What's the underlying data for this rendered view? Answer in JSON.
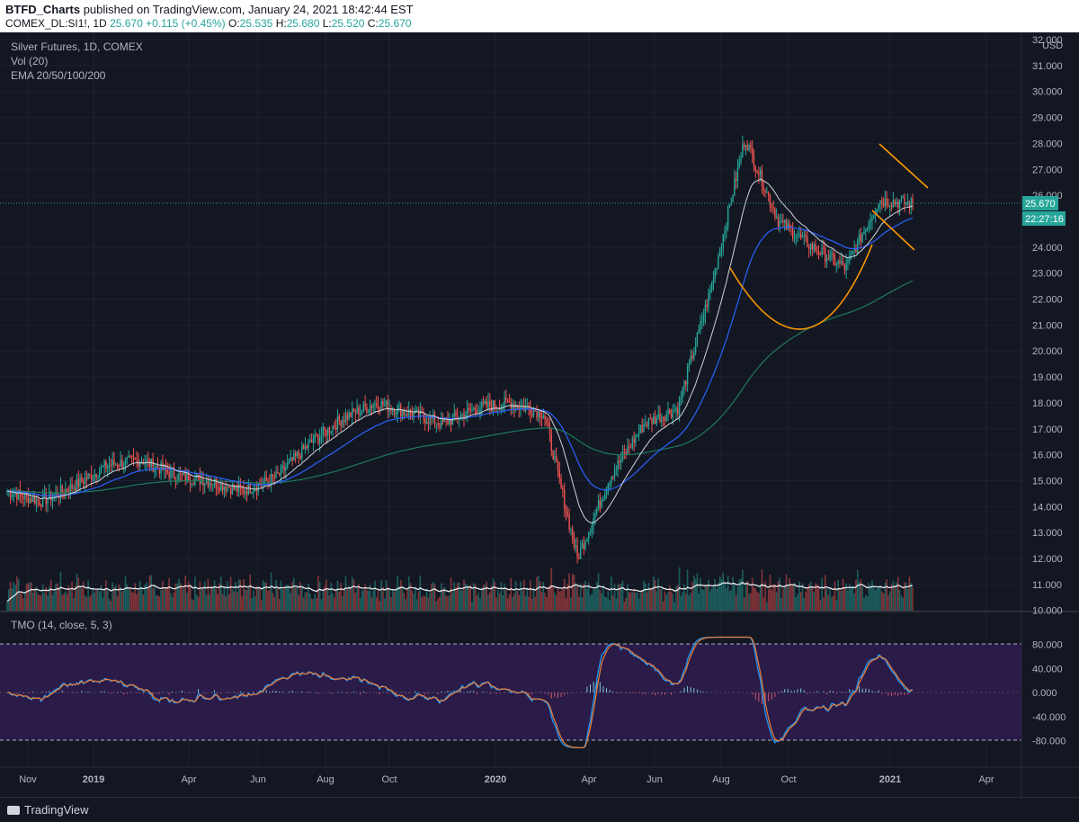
{
  "header": {
    "author": "BTFD_Charts",
    "published_text": " published on TradingView.com, January 24, 2021 18:42:44 EST",
    "symbol": "COMEX_DL:SI1!, 1D",
    "last": "25.670",
    "change": "+0.115 (+0.45%)",
    "o_label": "O:",
    "o": "25.535",
    "h_label": "H:",
    "h": "25.680",
    "l_label": "L:",
    "l": "25.520",
    "c_label": "C:",
    "c": "25.670"
  },
  "legend": {
    "title": "Silver Futures, 1D, COMEX",
    "vol": "Vol (20)",
    "ema": "EMA 20/50/100/200",
    "tmo": "TMO (14, close, 5, 3)"
  },
  "price_axis": {
    "currency": "USD",
    "ticks": [
      "32.000",
      "31.000",
      "30.000",
      "29.000",
      "28.000",
      "27.000",
      "26.000",
      "24.000",
      "23.000",
      "22.000",
      "21.000",
      "20.000",
      "19.000",
      "18.000",
      "17.000",
      "16.000",
      "15.000",
      "14.000",
      "13.000",
      "12.000",
      "11.000",
      "10.000"
    ],
    "last_price": "25.670",
    "countdown": "22:27:16"
  },
  "tmo_axis": {
    "ticks": [
      "80.000",
      "40.000",
      "0.000",
      "-40.000",
      "-80.000"
    ]
  },
  "time_axis": {
    "labels": [
      "Nov",
      "2019",
      "Apr",
      "Jun",
      "Aug",
      "Oct",
      "2020",
      "Apr",
      "Jun",
      "Aug",
      "Oct",
      "2021",
      "Apr"
    ]
  },
  "footer": {
    "brand": "TradingView"
  },
  "colors": {
    "background": "#131722",
    "up": "#26a69a",
    "down": "#ef5350",
    "ema20": "#ffffff",
    "ema50": "#2962ff",
    "ema200": "#1e7a5c",
    "pattern": "#ff9800"
  },
  "chart_data": {
    "type": "candlestick",
    "title": "Silver Futures, 1D, COMEX",
    "ylim": [
      10,
      32
    ],
    "series_notes": [
      "Vol (20)",
      "EMA 20/50/100/200",
      "TMO (14, close, 5, 3)"
    ],
    "time_range": [
      "2018-10",
      "2021-01"
    ],
    "approx_close_path": [
      {
        "x": "2018-10",
        "y": 14.6
      },
      {
        "x": "2018-11",
        "y": 14.2
      },
      {
        "x": "2018-12",
        "y": 14.8
      },
      {
        "x": "2019-01",
        "y": 15.6
      },
      {
        "x": "2019-02",
        "y": 15.8
      },
      {
        "x": "2019-03",
        "y": 15.2
      },
      {
        "x": "2019-04",
        "y": 15.0
      },
      {
        "x": "2019-05",
        "y": 14.6
      },
      {
        "x": "2019-06",
        "y": 15.1
      },
      {
        "x": "2019-07",
        "y": 16.4
      },
      {
        "x": "2019-08",
        "y": 17.4
      },
      {
        "x": "2019-09",
        "y": 18.0
      },
      {
        "x": "2019-10",
        "y": 17.6
      },
      {
        "x": "2019-11",
        "y": 17.2
      },
      {
        "x": "2019-12",
        "y": 17.8
      },
      {
        "x": "2020-01",
        "y": 18.0
      },
      {
        "x": "2020-02",
        "y": 17.6
      },
      {
        "x": "2020-03",
        "y": 12.0
      },
      {
        "x": "2020-04",
        "y": 15.2
      },
      {
        "x": "2020-05",
        "y": 17.2
      },
      {
        "x": "2020-06",
        "y": 17.8
      },
      {
        "x": "2020-07",
        "y": 22.5
      },
      {
        "x": "2020-08",
        "y": 28.2
      },
      {
        "x": "2020-09",
        "y": 25.0
      },
      {
        "x": "2020-10",
        "y": 24.0
      },
      {
        "x": "2020-11",
        "y": 23.2
      },
      {
        "x": "2020-12",
        "y": 25.8
      },
      {
        "x": "2021-01",
        "y": 25.67
      }
    ]
  }
}
